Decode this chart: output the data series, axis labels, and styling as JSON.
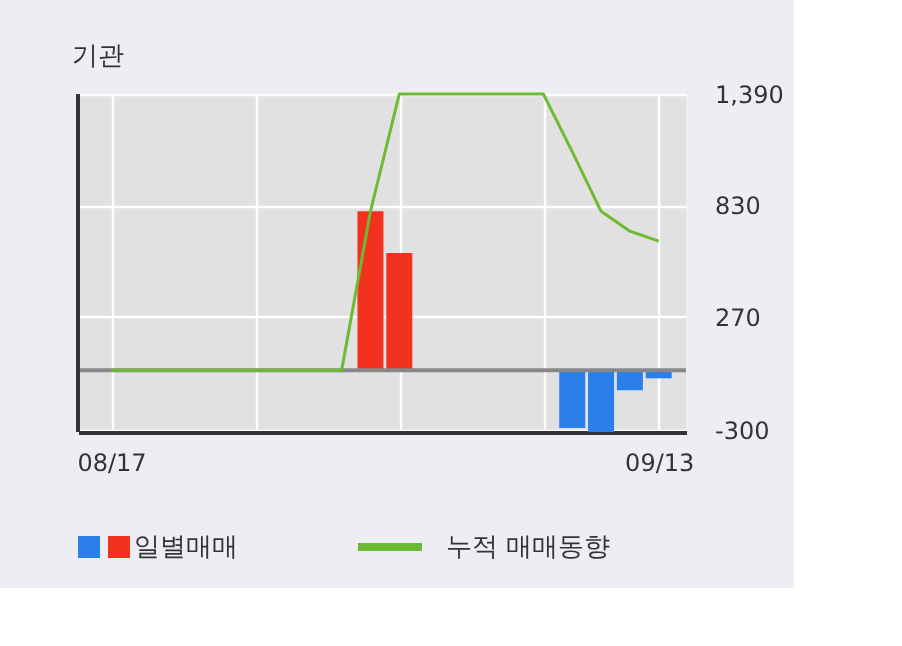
{
  "chart_data": {
    "type": "bar",
    "title": "기관",
    "categories": [
      "08/17",
      null,
      null,
      null,
      null,
      null,
      null,
      null,
      null,
      null,
      null,
      null,
      null,
      null,
      null,
      null,
      null,
      null,
      null,
      "09/13"
    ],
    "series": [
      {
        "name": "일별매매",
        "colors": [
          "#f0321e",
          "#f0321e",
          "#f0321e",
          "#f0321e",
          "#f0321e",
          "#f0321e",
          "#f0321e",
          "#f0321e",
          "#f0321e",
          "#f0321e",
          "#f0321e",
          "#f0321e",
          "#f0321e",
          "#f0321e",
          "#f0321e",
          "#f0321e",
          "#2a7fea",
          "#2a7fea",
          "#2a7fea",
          "#2a7fea"
        ],
        "values": [
          0,
          0,
          0,
          0,
          0,
          0,
          0,
          0,
          0,
          800,
          590,
          0,
          0,
          0,
          0,
          0,
          -290,
          -310,
          -100,
          -40
        ]
      },
      {
        "name": "누적 매매동향",
        "type": "line",
        "color": "#6dbb33",
        "values": [
          0,
          0,
          0,
          0,
          0,
          0,
          0,
          0,
          0,
          800,
          1390,
          1390,
          1390,
          1390,
          1390,
          1390,
          1100,
          800,
          700,
          650
        ]
      }
    ],
    "ylim": [
      -310,
      1390
    ],
    "yticks": [
      {
        "value": 1390,
        "label": "1,390"
      },
      830,
      270,
      -300
    ],
    "ref_lines": [
      {
        "axis": "y",
        "value": 0,
        "color": "#888888"
      }
    ],
    "grid": true,
    "legend": "bottom"
  }
}
